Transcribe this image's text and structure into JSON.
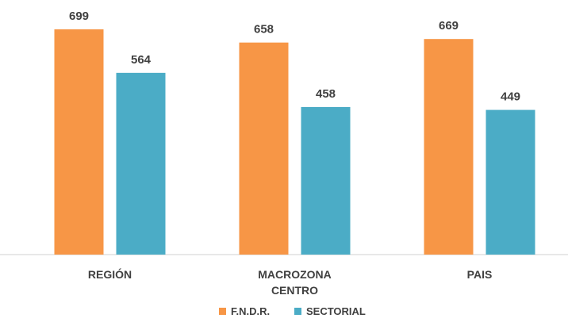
{
  "chart_data": {
    "type": "bar",
    "categories": [
      "REGIÓN",
      "MACROZONA CENTRO",
      "PAIS"
    ],
    "series": [
      {
        "name": "F.N.D.R.",
        "color": "#f79646",
        "values": [
          699,
          658,
          669
        ]
      },
      {
        "name": "SECTORIAL",
        "color": "#4bacc6",
        "values": [
          564,
          458,
          449
        ]
      }
    ]
  }
}
